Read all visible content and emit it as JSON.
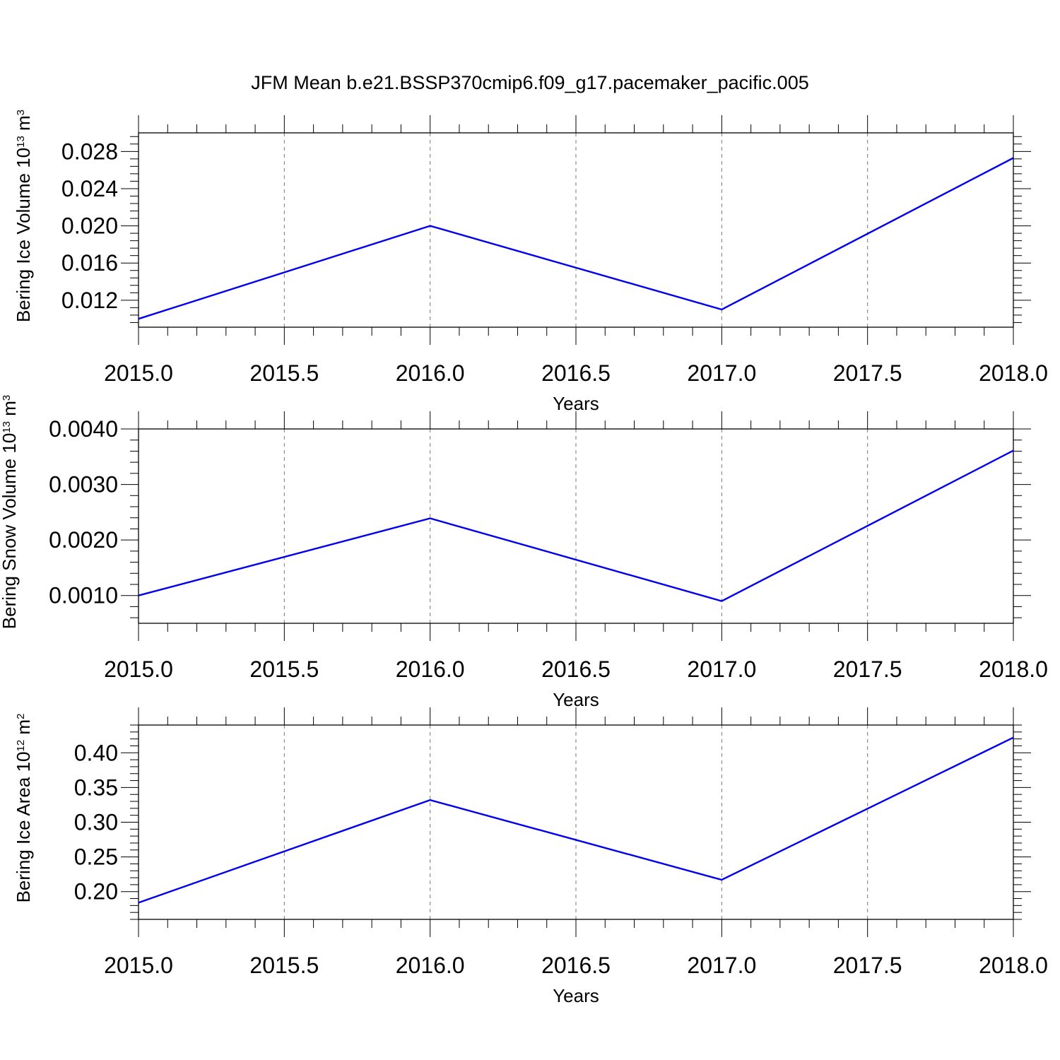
{
  "title": "JFM Mean b.e21.BSSP370cmip6.f09_g17.pacemaker_pacific.005",
  "colors": {
    "line": "#0000ee",
    "axis": "#000000",
    "grid": "#777777"
  },
  "chart_data": [
    {
      "type": "line",
      "ylabel": {
        "base": "Bering Ice Volume 10",
        "exp": "13",
        "unit": " m",
        "unit_exp": "3"
      },
      "xlabel": "Years",
      "x": [
        2015,
        2016,
        2017,
        2018
      ],
      "series": [
        {
          "values": [
            0.01,
            0.02,
            0.011,
            0.0273
          ]
        }
      ],
      "xlim": [
        2015,
        2018
      ],
      "ylim": [
        0.0091,
        0.03
      ],
      "xticks": [
        2015.0,
        2015.5,
        2016.0,
        2016.5,
        2017.0,
        2017.5,
        2018.0
      ],
      "xtick_labels": [
        "2015.0",
        "2015.5",
        "2016.0",
        "2016.5",
        "2017.0",
        "2017.5",
        "2018.0"
      ],
      "yticks": [
        0.012,
        0.016,
        0.02,
        0.024,
        0.028
      ],
      "ytick_labels": [
        "0.012",
        "0.016",
        "0.020",
        "0.024",
        "0.028"
      ],
      "yminor_step": 0.0008,
      "xminor_step": 0.1,
      "grid": "vertical dashed at major x ticks"
    },
    {
      "type": "line",
      "ylabel": {
        "base": "Bering Snow Volume 10",
        "exp": "13",
        "unit": " m",
        "unit_exp": "3"
      },
      "xlabel": "Years",
      "x": [
        2015,
        2016,
        2017,
        2018
      ],
      "series": [
        {
          "values": [
            0.001,
            0.00239,
            0.0009,
            0.00361
          ]
        }
      ],
      "xlim": [
        2015,
        2018
      ],
      "ylim": [
        0.0005,
        0.004
      ],
      "xticks": [
        2015.0,
        2015.5,
        2016.0,
        2016.5,
        2017.0,
        2017.5,
        2018.0
      ],
      "xtick_labels": [
        "2015.0",
        "2015.5",
        "2016.0",
        "2016.5",
        "2017.0",
        "2017.5",
        "2018.0"
      ],
      "yticks": [
        0.001,
        0.002,
        0.003,
        0.004
      ],
      "ytick_labels": [
        "0.0010",
        "0.0020",
        "0.0030",
        "0.0040"
      ],
      "yminor_step": 0.0002,
      "xminor_step": 0.1,
      "grid": "vertical dashed at major x ticks"
    },
    {
      "type": "line",
      "ylabel": {
        "base": "Bering Ice Area 10",
        "exp": "12",
        "unit": " m",
        "unit_exp": "2"
      },
      "xlabel": "Years",
      "x": [
        2015,
        2016,
        2017,
        2018
      ],
      "series": [
        {
          "values": [
            0.184,
            0.332,
            0.217,
            0.422
          ]
        }
      ],
      "xlim": [
        2015,
        2018
      ],
      "ylim": [
        0.16,
        0.44
      ],
      "xticks": [
        2015.0,
        2015.5,
        2016.0,
        2016.5,
        2017.0,
        2017.5,
        2018.0
      ],
      "xtick_labels": [
        "2015.0",
        "2015.5",
        "2016.0",
        "2016.5",
        "2017.0",
        "2017.5",
        "2018.0"
      ],
      "yticks": [
        0.2,
        0.25,
        0.3,
        0.35,
        0.4
      ],
      "ytick_labels": [
        "0.20",
        "0.25",
        "0.30",
        "0.35",
        "0.40"
      ],
      "yminor_step": 0.01,
      "xminor_step": 0.1,
      "grid": "vertical dashed at major x ticks"
    }
  ]
}
